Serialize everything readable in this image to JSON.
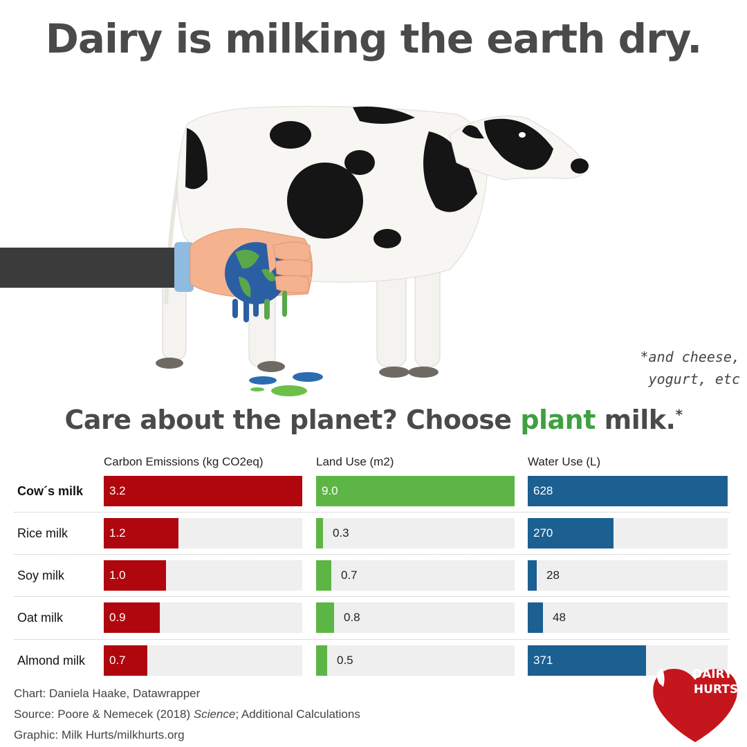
{
  "headline": "Dairy is milking the earth dry.",
  "footnote": {
    "line1": "*and cheese,",
    "line2": "yogurt, etc"
  },
  "subhead": {
    "prefix": "Care about the planet? Choose ",
    "accent": "plant",
    "suffix": " milk.",
    "mark": "*"
  },
  "colors": {
    "carbon": "#b0060e",
    "land": "#5db546",
    "water": "#1c5f91",
    "track": "#efefef",
    "accent_text": "#3ea040"
  },
  "chart_data": {
    "type": "bar",
    "categories": [
      "Cow´s milk",
      "Rice milk",
      "Soy milk",
      "Oat milk",
      "Almond milk"
    ],
    "series": [
      {
        "name": "Carbon Emissions (kg CO2eq)",
        "values": [
          3.2,
          1.2,
          1.0,
          0.9,
          0.7
        ],
        "labels": [
          "3.2",
          "1.2",
          "1.0",
          "0.9",
          "0.7"
        ]
      },
      {
        "name": "Land Use (m2)",
        "values": [
          9.0,
          0.3,
          0.7,
          0.8,
          0.5
        ],
        "labels": [
          "9.0",
          "0.3",
          "0.7",
          "0.8",
          "0.5"
        ]
      },
      {
        "name": "Water Use (L)",
        "values": [
          628,
          270,
          28,
          48,
          371
        ],
        "labels": [
          "628",
          "270",
          "28",
          "48",
          "371"
        ]
      }
    ]
  },
  "credits": {
    "chart": "Chart: Daniela Haake, Datawrapper",
    "source_prefix": "Source: Poore & Nemecek (2018) ",
    "source_journal": "Science",
    "source_suffix": "; Additional Calculations",
    "graphic": "Graphic: Milk Hurts/milkhurts.org"
  },
  "logo": {
    "line1": "DAIRY",
    "line2": "HURTS"
  }
}
